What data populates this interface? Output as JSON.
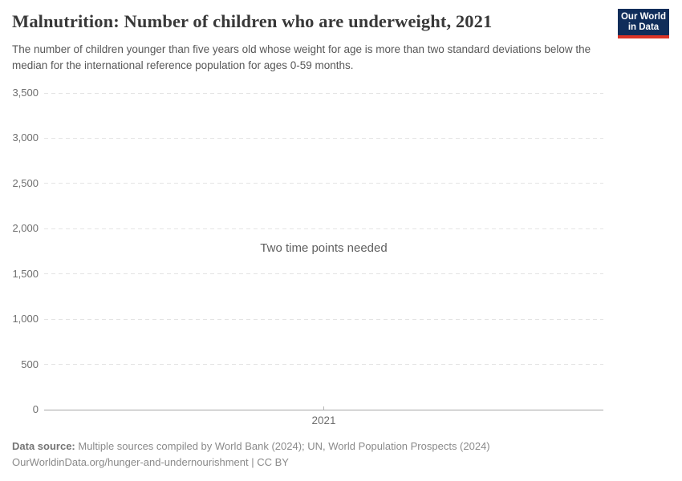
{
  "header": {
    "title": "Malnutrition: Number of children who are underweight, 2021",
    "subtitle": "The number of children younger than five years old whose weight for age is more than two standard deviations below the median for the international reference population for ages 0-59 months.",
    "logo": {
      "line1": "Our World",
      "line2": "in Data",
      "bg_color": "#102d5a",
      "accent_color": "#dc3426"
    }
  },
  "chart_data": {
    "type": "line",
    "title": "Malnutrition: Number of children who are underweight, 2021",
    "x": [
      2021
    ],
    "series": [],
    "values": [],
    "empty_state": true,
    "empty_state_message": "Two time points needed",
    "xlabel": "",
    "ylabel": "",
    "ylim": [
      0,
      3500
    ],
    "yticks": [
      0,
      500,
      1000,
      1500,
      2000,
      2500,
      3000,
      3500
    ],
    "ytick_labels": [
      "0",
      "500",
      "1,000",
      "1,500",
      "2,000",
      "2,500",
      "3,000",
      "3,500"
    ],
    "xtick_labels": [
      "2021"
    ],
    "grid": "horizontal-dashed",
    "legend": "none",
    "axis_color": "#a5a5a5",
    "gridline_color": "#e4e4e4",
    "tick_label_color": "#6e6e6e"
  },
  "empty_state_message": "Two time points needed",
  "footer": {
    "source_label": "Data source:",
    "source_text": "Multiple sources compiled by World Bank (2024); UN, World Population Prospects (2024)",
    "citation": "OurWorldinData.org/hunger-and-undernourishment | CC BY"
  }
}
